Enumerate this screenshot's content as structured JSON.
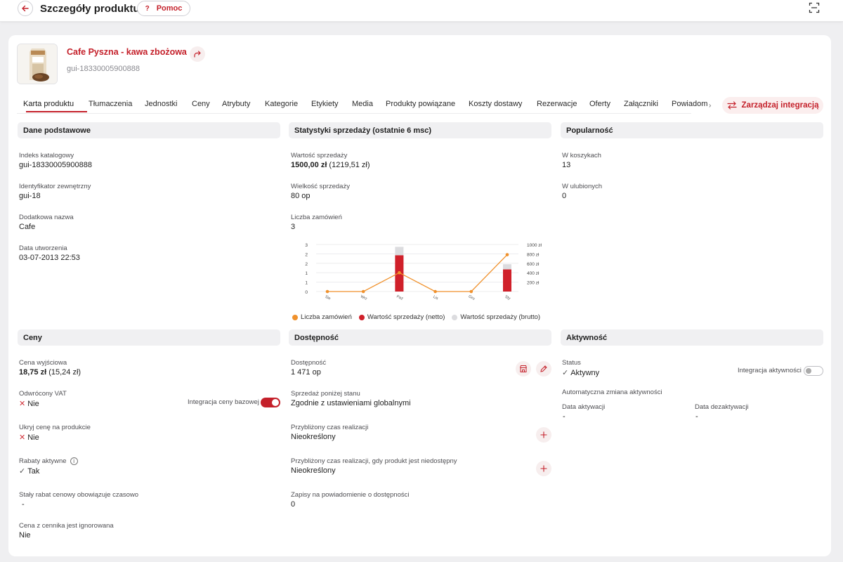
{
  "header": {
    "title": "Szczegóły produktu",
    "help_label": "Pomoc"
  },
  "product": {
    "name": "Cafe Pyszna - kawa zbożowa",
    "code": "gui-18330005900888"
  },
  "tabs": [
    {
      "label": "Karta produktu",
      "active": true
    },
    {
      "label": "Tłumaczenia"
    },
    {
      "label": "Jednostki"
    },
    {
      "label": "Ceny"
    },
    {
      "label": "Atrybuty"
    },
    {
      "label": "Kategorie"
    },
    {
      "label": "Etykiety"
    },
    {
      "label": "Media"
    },
    {
      "label": "Produkty powiązane"
    },
    {
      "label": "Koszty dostawy"
    },
    {
      "label": "Rezerwacje"
    },
    {
      "label": "Oferty"
    },
    {
      "label": "Załączniki"
    },
    {
      "label": "Powiadom"
    }
  ],
  "integration_button": "Zarządzaj integracją",
  "basic": {
    "title": "Dane podstawowe",
    "fields": [
      {
        "label": "Indeks katalogowy",
        "value": "gui-18330005900888"
      },
      {
        "label": "Identyfikator zewnętrzny",
        "value": "gui-18"
      },
      {
        "label": "Dodatkowa nazwa",
        "value": "Cafe"
      },
      {
        "label": "Data utworzenia",
        "value": "03-07-2013 22:53"
      }
    ]
  },
  "stats": {
    "title": "Statystyki sprzedaży (ostatnie 6 msc)",
    "sales_value_label": "Wartość sprzedaży",
    "sales_value_bold": "1500,00 zł",
    "sales_value_rest": " (1219,51 zł)",
    "volume_label": "Wielkość sprzedaży",
    "volume_value": "80 op",
    "orders_label": "Liczba zamówień",
    "orders_value": "3"
  },
  "popularity": {
    "title": "Popularność",
    "fields": [
      {
        "label": "W koszykach",
        "value": "13"
      },
      {
        "label": "W ulubionych",
        "value": "0"
      }
    ]
  },
  "prices": {
    "title": "Ceny",
    "base_price_label": "Cena wyjściowa",
    "base_price_bold": "18,75 zł",
    "base_price_rest": " (15,24 zł)",
    "reverse_vat_label": "Odwrócony VAT",
    "reverse_vat_value": "Nie",
    "base_price_integration_label": "Integracja ceny bazowej",
    "hide_price_label": "Ukryj cenę na produkcie",
    "hide_price_value": "Nie",
    "discounts_label": "Rabaty aktywne",
    "discounts_value": "Tak",
    "fixed_discount_label": "Stały rabat cenowy obowiązuje czasowo",
    "fixed_discount_value": "-",
    "ignored_label": "Cena z cennika jest ignorowana",
    "ignored_value": "Nie"
  },
  "availability": {
    "title": "Dostępność",
    "availability_label": "Dostępność",
    "availability_value": "1 471 op",
    "below_stock_label": "Sprzedaż poniżej stanu",
    "below_stock_value": "Zgodnie z ustawieniami globalnymi",
    "lead_time_label": "Przybliżony czas realizacji",
    "lead_time_value": "Nieokreślony",
    "lead_time_na_label": "Przybliżony czas realizacji, gdy produkt jest niedostępny",
    "lead_time_na_value": "Nieokreślony",
    "notify_label": "Zapisy na powiadomienie o dostępności",
    "notify_value": "0"
  },
  "activity": {
    "title": "Aktywność",
    "status_label": "Status",
    "status_value": "Aktywny",
    "integration_label": "Integracja aktywności",
    "auto_change_label": "Automatyczna zmiana aktywności",
    "activation_label": "Data aktywacji",
    "activation_value": "-",
    "deactivation_label": "Data dezaktywacji",
    "deactivation_value": "-"
  },
  "chart_data": {
    "type": "bar",
    "categories": [
      "Sie",
      "Wrz",
      "Paź",
      "Lis",
      "Gru",
      "Sty"
    ],
    "left_ticks": [
      "0",
      "1",
      "1",
      "2",
      "2",
      "3"
    ],
    "right_ticks": [
      "200 zł",
      "400 zł",
      "600 zł",
      "800 zł",
      "1000 zł"
    ],
    "left_ylim": [
      0,
      3
    ],
    "right_ylim": [
      0,
      1000
    ],
    "series": [
      {
        "name": "Liczba zamówień",
        "kind": "line",
        "axis": "left",
        "color": "#f0912c",
        "values": [
          0,
          0,
          1.2,
          0,
          0,
          2.35
        ]
      },
      {
        "name": "Wartość sprzedaży (netto)",
        "kind": "bar",
        "axis": "right",
        "color": "#d0202a",
        "values": [
          0,
          0,
          770,
          0,
          0,
          470
        ]
      },
      {
        "name": "Wartość sprzedaży (brutto)",
        "kind": "bar",
        "axis": "right",
        "color": "#dcdcdf",
        "values": [
          0,
          0,
          950,
          0,
          0,
          580
        ]
      }
    ],
    "legend": [
      "Liczba zamówień",
      "Wartość sprzedaży (netto)",
      "Wartość sprzedaży (brutto)"
    ]
  }
}
